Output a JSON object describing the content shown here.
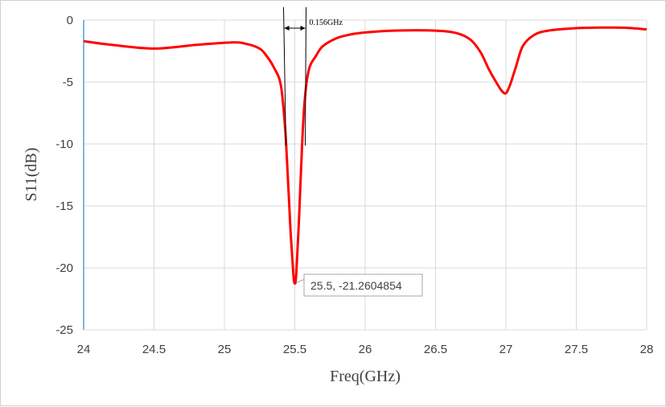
{
  "chart_data": {
    "type": "line",
    "xlabel": "Freq(GHz)",
    "ylabel": "S11(dB)",
    "xlim": [
      24,
      28
    ],
    "ylim": [
      -25,
      0
    ],
    "x_ticks": [
      "24",
      "24.5",
      "25",
      "25.5",
      "26",
      "26.5",
      "27",
      "27.5",
      "28"
    ],
    "y_ticks": [
      "0",
      "-5",
      "-10",
      "-15",
      "-20",
      "-25"
    ],
    "grid": true,
    "series": [
      {
        "color": "#ff0000",
        "x": [
          24.0,
          24.2,
          24.5,
          24.8,
          25.05,
          25.15,
          25.25,
          25.3,
          25.35,
          25.4,
          25.43,
          25.45,
          25.47,
          25.49,
          25.5,
          25.51,
          25.53,
          25.55,
          25.57,
          25.6,
          25.65,
          25.7,
          25.8,
          25.9,
          26.0,
          26.2,
          26.5,
          26.65,
          26.75,
          26.82,
          26.88,
          26.93,
          26.97,
          27.0,
          27.03,
          27.07,
          27.12,
          27.2,
          27.3,
          27.5,
          27.7,
          27.85,
          28.0
        ],
        "y": [
          -1.7,
          -2.0,
          -2.3,
          -2.0,
          -1.8,
          -1.9,
          -2.3,
          -2.9,
          -3.8,
          -5.2,
          -8.5,
          -12.5,
          -17.0,
          -20.5,
          -21.26,
          -20.5,
          -16.0,
          -10.5,
          -6.5,
          -4.0,
          -2.9,
          -2.1,
          -1.45,
          -1.15,
          -1.0,
          -0.85,
          -0.85,
          -1.05,
          -1.6,
          -2.6,
          -4.0,
          -5.0,
          -5.7,
          -5.9,
          -5.2,
          -3.8,
          -2.1,
          -1.2,
          -0.85,
          -0.65,
          -0.6,
          -0.62,
          -0.75
        ]
      }
    ],
    "annotations": {
      "point_label": "25.5, -21.2604854",
      "point": [
        25.5,
        -21.2604854
      ],
      "bandwidth_label": "0.156GHz",
      "bandwidth_lines_x": [
        25.42,
        25.58
      ]
    }
  }
}
